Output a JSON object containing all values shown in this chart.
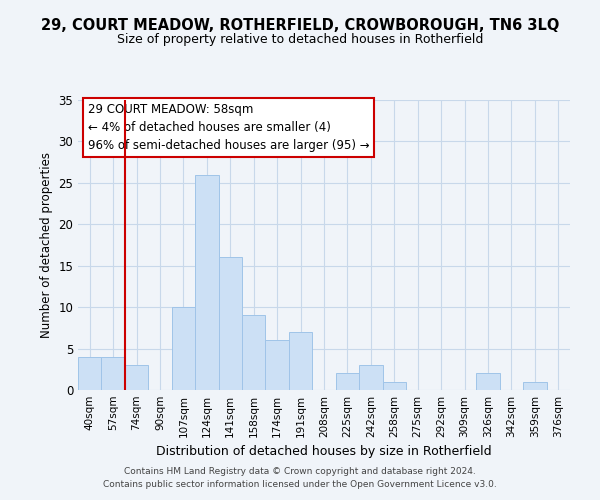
{
  "title": "29, COURT MEADOW, ROTHERFIELD, CROWBOROUGH, TN6 3LQ",
  "subtitle": "Size of property relative to detached houses in Rotherfield",
  "xlabel": "Distribution of detached houses by size in Rotherfield",
  "ylabel": "Number of detached properties",
  "footer_lines": [
    "Contains HM Land Registry data © Crown copyright and database right 2024.",
    "Contains public sector information licensed under the Open Government Licence v3.0."
  ],
  "bin_labels": [
    "40sqm",
    "57sqm",
    "74sqm",
    "90sqm",
    "107sqm",
    "124sqm",
    "141sqm",
    "158sqm",
    "174sqm",
    "191sqm",
    "208sqm",
    "225sqm",
    "242sqm",
    "258sqm",
    "275sqm",
    "292sqm",
    "309sqm",
    "326sqm",
    "342sqm",
    "359sqm",
    "376sqm"
  ],
  "bar_values": [
    4,
    4,
    3,
    0,
    10,
    26,
    16,
    9,
    6,
    7,
    0,
    2,
    3,
    1,
    0,
    0,
    0,
    2,
    0,
    1,
    0
  ],
  "bar_color": "#cce0f5",
  "bar_edge_color": "#a0c4e8",
  "vline_x_index": 1,
  "vline_color": "#cc0000",
  "ylim": [
    0,
    35
  ],
  "yticks": [
    0,
    5,
    10,
    15,
    20,
    25,
    30,
    35
  ],
  "annotation_title": "29 COURT MEADOW: 58sqm",
  "annotation_line1": "← 4% of detached houses are smaller (4)",
  "annotation_line2": "96% of semi-detached houses are larger (95) →",
  "bg_color": "#f0f4f9"
}
